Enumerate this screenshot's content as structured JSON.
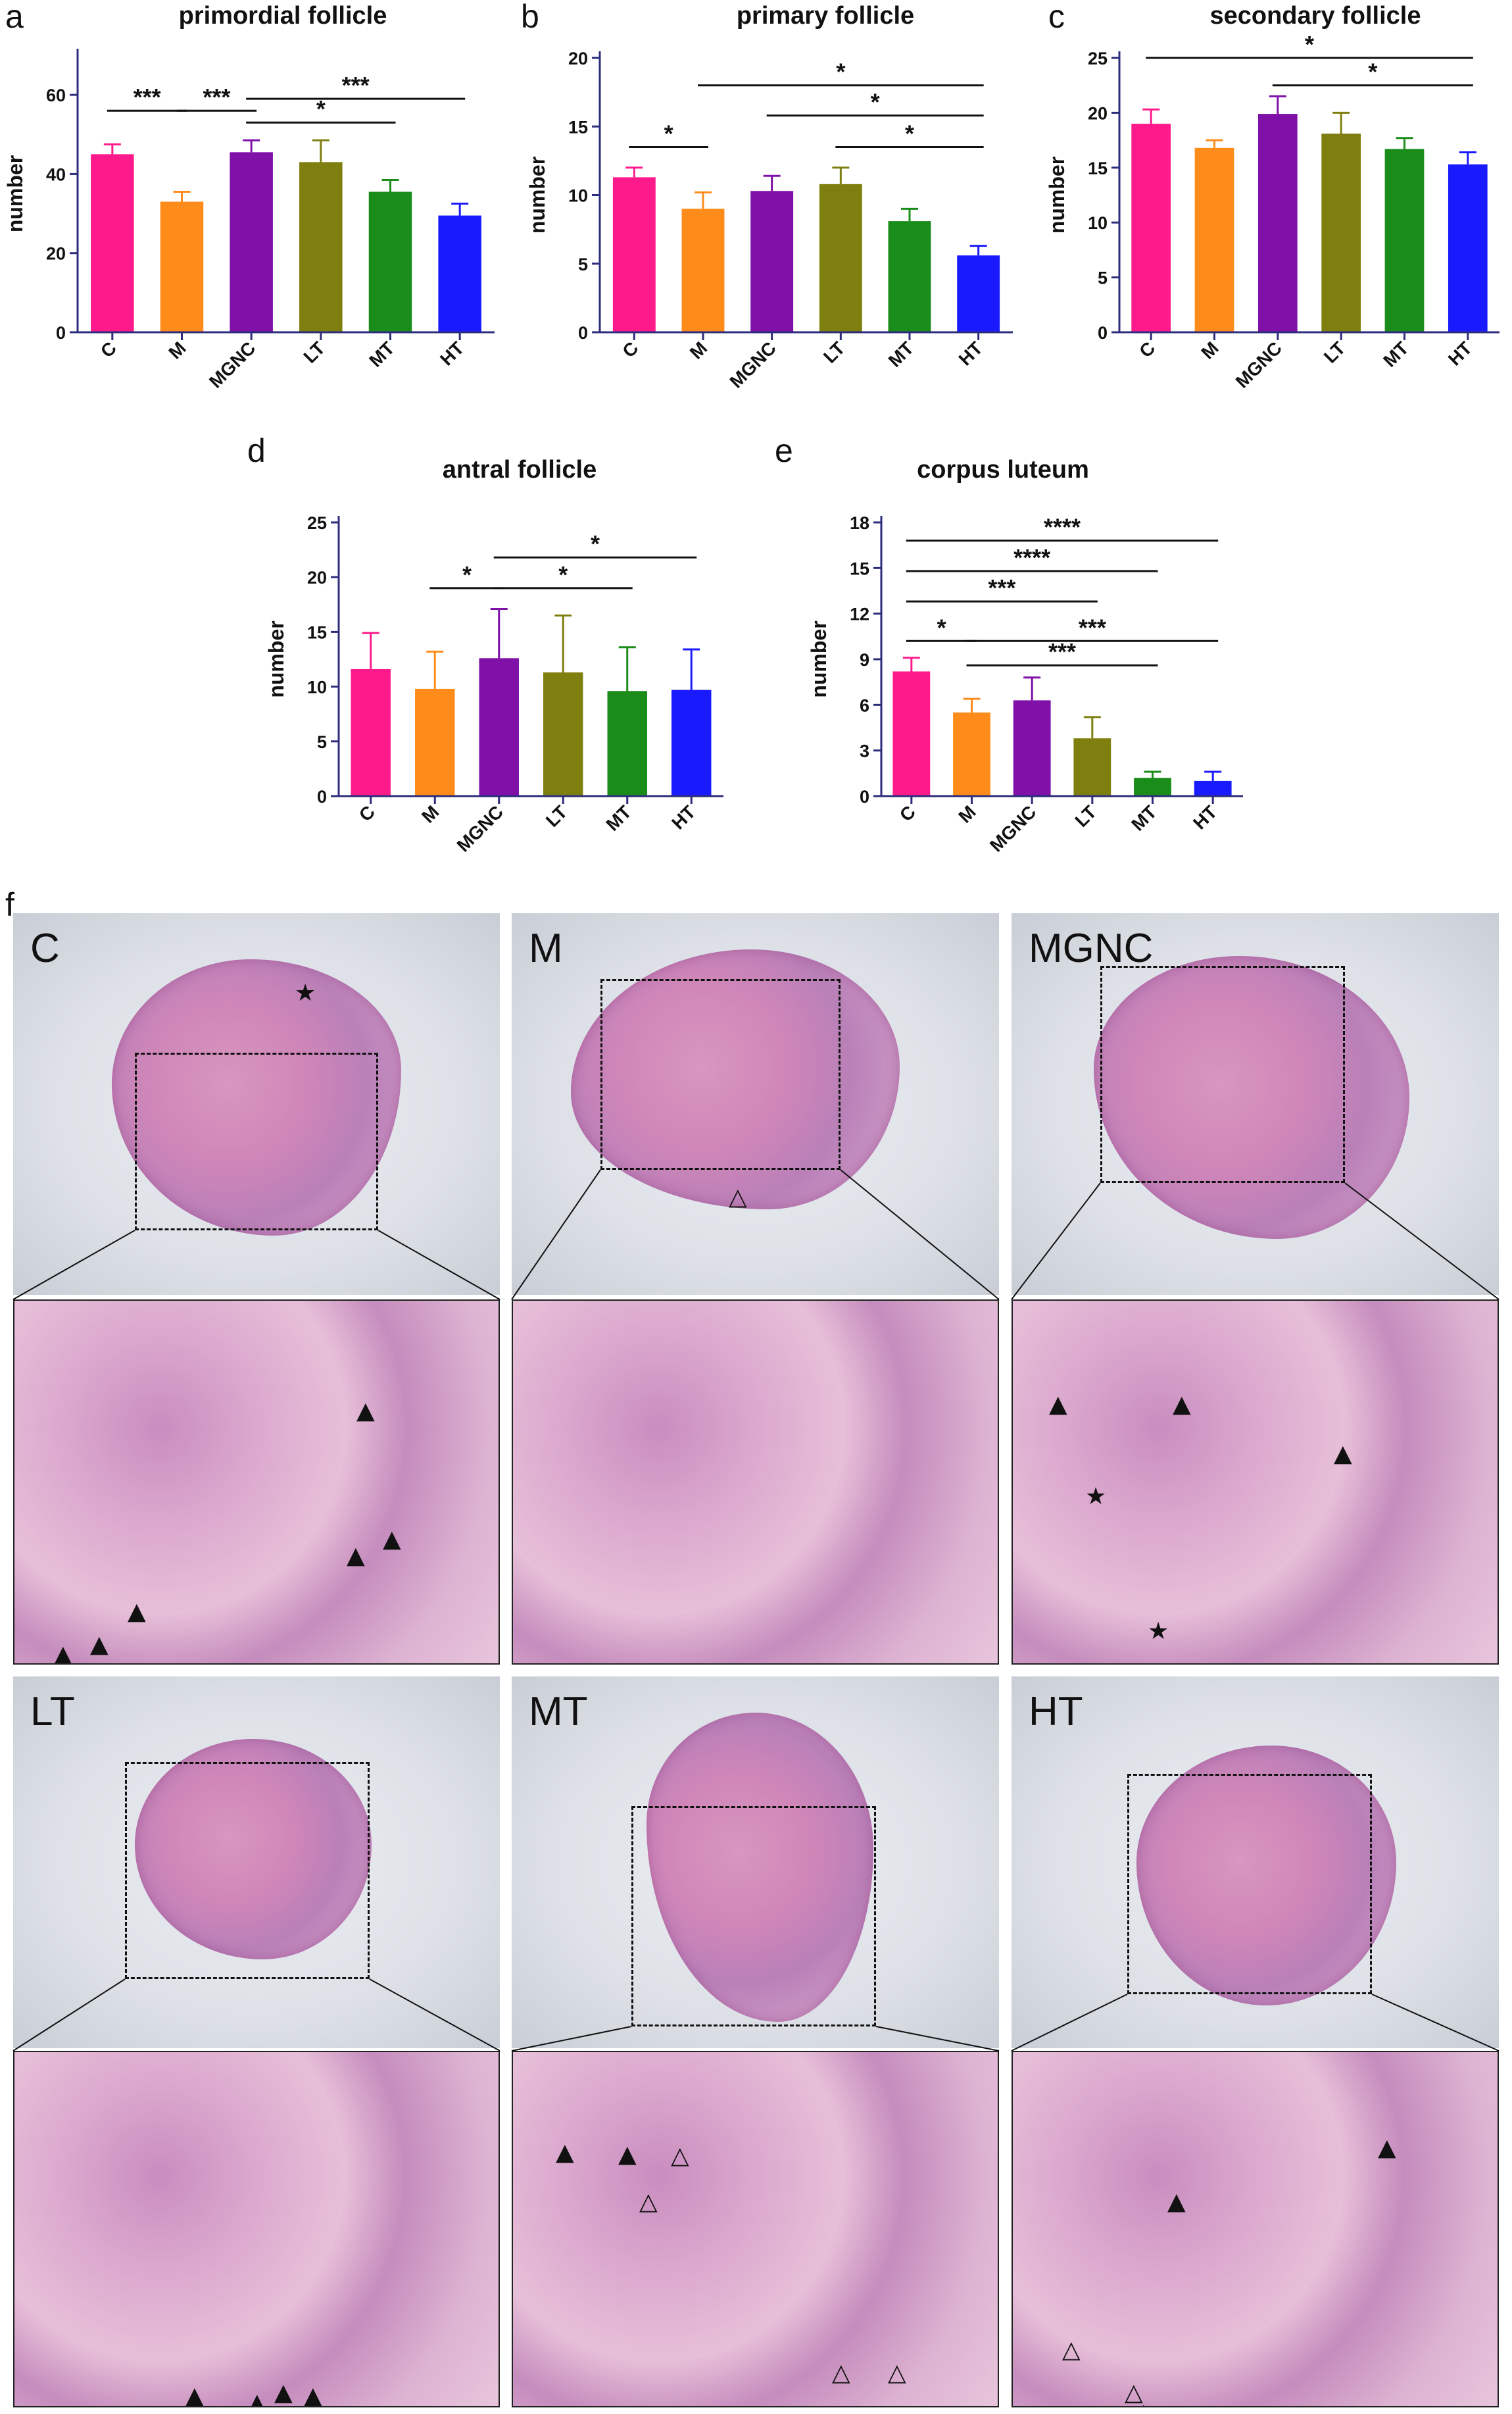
{
  "panel_letters": [
    "a",
    "b",
    "c",
    "d",
    "e",
    "f"
  ],
  "chart_data": [
    {
      "id": "a",
      "type": "bar",
      "title": "primordial follicle",
      "ylabel": "number",
      "categories": [
        "C",
        "M",
        "MGNC",
        "LT",
        "MT",
        "HT"
      ],
      "values": [
        45,
        33,
        45.5,
        43,
        35.5,
        29.5
      ],
      "errors": [
        2.5,
        2.5,
        3,
        5.5,
        3,
        3
      ],
      "ylim": [
        0,
        70
      ],
      "yticks": [
        0,
        20,
        40,
        60
      ],
      "colors": [
        "#ff1a8c",
        "#ff8c1a",
        "#7f10a8",
        "#7f7f10",
        "#1a8c1a",
        "#1a1aff"
      ],
      "significance": [
        {
          "from": 0,
          "to": 1,
          "label": "***",
          "y": 56
        },
        {
          "from": 1,
          "to": 2,
          "label": "***",
          "y": 56
        },
        {
          "from": 2,
          "to": 5,
          "label": "***",
          "y": 59
        },
        {
          "from": 2,
          "to": 4,
          "label": "*",
          "y": 53
        }
      ]
    },
    {
      "id": "b",
      "type": "bar",
      "title": "primary follicle",
      "ylabel": "number",
      "categories": [
        "C",
        "M",
        "MGNC",
        "LT",
        "MT",
        "HT"
      ],
      "values": [
        11.3,
        9,
        10.3,
        10.8,
        8.1,
        5.6
      ],
      "errors": [
        0.7,
        1.2,
        1.1,
        1.2,
        0.9,
        0.7
      ],
      "ylim": [
        0,
        20
      ],
      "yticks": [
        0,
        5,
        10,
        15,
        20
      ],
      "colors": [
        "#ff1a8c",
        "#ff8c1a",
        "#7f10a8",
        "#7f7f10",
        "#1a8c1a",
        "#1a1aff"
      ],
      "significance": [
        {
          "from": 0,
          "to": 1,
          "label": "*",
          "y": 13.5
        },
        {
          "from": 1,
          "to": 5,
          "label": "*",
          "y": 18
        },
        {
          "from": 2,
          "to": 5,
          "label": "*",
          "y": 15.8
        },
        {
          "from": 3,
          "to": 5,
          "label": "*",
          "y": 13.5
        }
      ]
    },
    {
      "id": "c",
      "type": "bar",
      "title": "secondary follicle",
      "ylabel": "number",
      "categories": [
        "C",
        "M",
        "MGNC",
        "LT",
        "MT",
        "HT"
      ],
      "values": [
        19,
        16.8,
        19.9,
        18.1,
        16.7,
        15.3
      ],
      "errors": [
        1.3,
        0.7,
        1.6,
        1.9,
        1,
        1.1
      ],
      "ylim": [
        0,
        25
      ],
      "yticks": [
        0,
        5,
        10,
        15,
        20,
        25
      ],
      "colors": [
        "#ff1a8c",
        "#ff8c1a",
        "#7f10a8",
        "#7f7f10",
        "#1a8c1a",
        "#1a1aff"
      ],
      "significance": [
        {
          "from": 0,
          "to": 5,
          "label": "*",
          "y": 25
        },
        {
          "from": 2,
          "to": 5,
          "label": "*",
          "y": 22.5
        }
      ]
    },
    {
      "id": "d",
      "type": "bar",
      "title": "antral follicle",
      "ylabel": "number",
      "categories": [
        "C",
        "M",
        "MGNC",
        "LT",
        "MT",
        "HT"
      ],
      "values": [
        11.6,
        9.8,
        12.6,
        11.3,
        9.6,
        9.7
      ],
      "errors": [
        3.3,
        3.4,
        4.5,
        5.2,
        4,
        3.7
      ],
      "ylim": [
        0,
        25
      ],
      "yticks": [
        0,
        5,
        10,
        15,
        20,
        25
      ],
      "colors": [
        "#ff1a8c",
        "#ff8c1a",
        "#7f10a8",
        "#7f7f10",
        "#1a8c1a",
        "#1a1aff"
      ],
      "significance": [
        {
          "from": 1,
          "to": 2,
          "label": "*",
          "y": 19
        },
        {
          "from": 2,
          "to": 5,
          "label": "*",
          "y": 21.8
        },
        {
          "from": 2,
          "to": 4,
          "label": "*",
          "y": 19
        }
      ]
    },
    {
      "id": "e",
      "type": "bar",
      "title": "corpus luteum",
      "ylabel": "number",
      "categories": [
        "C",
        "M",
        "MGNC",
        "LT",
        "MT",
        "HT"
      ],
      "values": [
        8.2,
        5.5,
        6.3,
        3.8,
        1.2,
        1.0
      ],
      "errors": [
        0.9,
        0.9,
        1.5,
        1.4,
        0.4,
        0.6
      ],
      "ylim": [
        0,
        18
      ],
      "yticks": [
        0,
        3,
        6,
        9,
        12,
        15,
        18
      ],
      "colors": [
        "#ff1a8c",
        "#ff8c1a",
        "#7f10a8",
        "#7f7f10",
        "#1a8c1a",
        "#1a1aff"
      ],
      "significance": [
        {
          "from": 0,
          "to": 5,
          "label": "****",
          "y": 16.8
        },
        {
          "from": 0,
          "to": 4,
          "label": "****",
          "y": 14.8
        },
        {
          "from": 0,
          "to": 3,
          "label": "***",
          "y": 12.8
        },
        {
          "from": 0,
          "to": 1,
          "label": "*",
          "y": 10.2
        },
        {
          "from": 1,
          "to": 5,
          "label": "***",
          "y": 10.2
        },
        {
          "from": 1,
          "to": 4,
          "label": "***",
          "y": 8.6
        }
      ]
    }
  ],
  "micrographs": [
    {
      "label": "C",
      "markers_top": [
        "★"
      ],
      "markers_bottom": [
        "▲",
        "▲",
        "▲",
        "▲",
        "▲",
        "▲"
      ]
    },
    {
      "label": "M",
      "markers_top": [
        "△"
      ],
      "markers_bottom": []
    },
    {
      "label": "MGNC",
      "markers_top": [],
      "markers_bottom": [
        "▲",
        "▲",
        "▲",
        "★",
        "★"
      ]
    },
    {
      "label": "LT",
      "markers_top": [],
      "markers_bottom": [
        "▲",
        "▲",
        "▲",
        "▲"
      ]
    },
    {
      "label": "MT",
      "markers_top": [],
      "markers_bottom": [
        "▲",
        "▲",
        "△",
        "△",
        "△",
        "△"
      ]
    },
    {
      "label": "HT",
      "markers_top": [],
      "markers_bottom": [
        "▲",
        "▲",
        "△",
        "△",
        "△"
      ]
    }
  ]
}
